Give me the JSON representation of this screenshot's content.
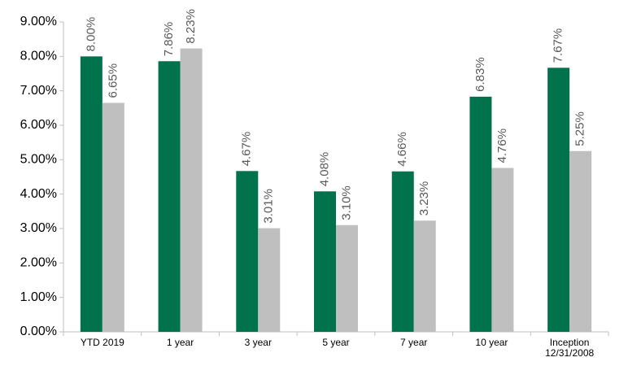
{
  "chart_data": {
    "type": "bar",
    "categories": [
      "YTD 2019",
      "1 year",
      "3 year",
      "5 year",
      "7 year",
      "10 year",
      "Inception 12/31/2008"
    ],
    "series": [
      {
        "color": "#00734c",
        "values": [
          8.0,
          7.86,
          4.67,
          4.08,
          4.66,
          6.83,
          7.67
        ],
        "value_labels": [
          "8.00%",
          "7.86%",
          "4.67%",
          "4.08%",
          "4.66%",
          "6.83%",
          "7.67%"
        ]
      },
      {
        "color": "#bfbfbf",
        "values": [
          6.65,
          8.23,
          3.01,
          3.1,
          3.23,
          4.76,
          5.25
        ],
        "value_labels": [
          "6.65%",
          "8.23%",
          "3.01%",
          "3.10%",
          "3.23%",
          "4.76%",
          "5.25%"
        ]
      }
    ],
    "ylim": [
      0,
      9
    ],
    "yticks": [
      {
        "value": 0,
        "label": "0.00%"
      },
      {
        "value": 1,
        "label": "1.00%"
      },
      {
        "value": 2,
        "label": "2.00%"
      },
      {
        "value": 3,
        "label": "3.00%"
      },
      {
        "value": 4,
        "label": "4.00%"
      },
      {
        "value": 5,
        "label": "5.00%"
      },
      {
        "value": 6,
        "label": "6.00%"
      },
      {
        "value": 7,
        "label": "7.00%"
      },
      {
        "value": 8,
        "label": "8.00%"
      },
      {
        "value": 9,
        "label": "9.00%"
      }
    ],
    "grid": false
  }
}
